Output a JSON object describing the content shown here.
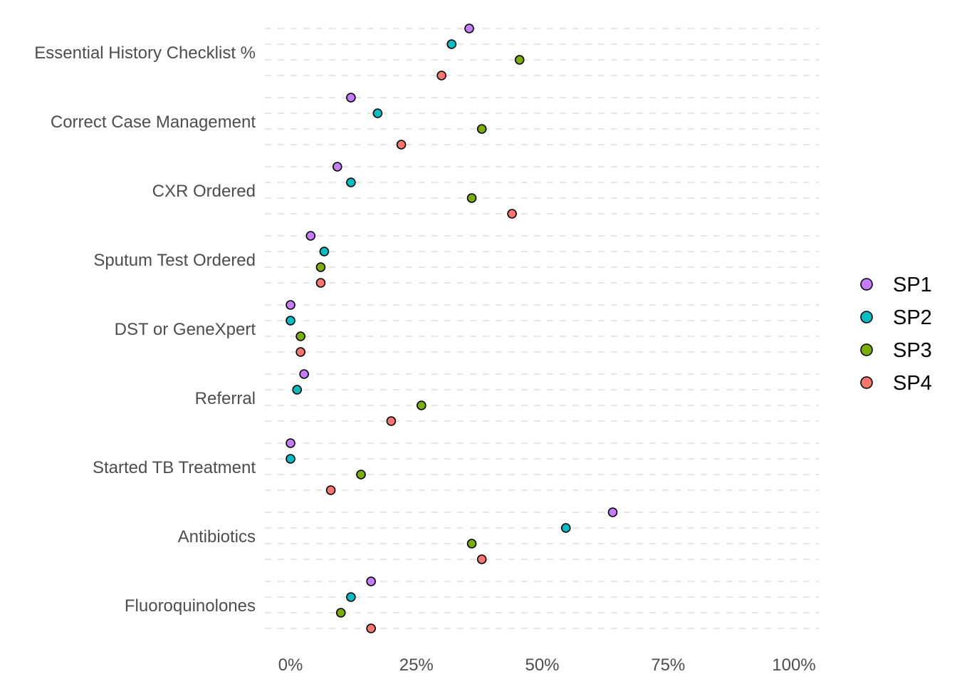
{
  "colors": {
    "SP1": "#c77cff",
    "SP2": "#00bfc4",
    "SP3": "#7cae00",
    "SP4": "#f8766d"
  },
  "chart_data": {
    "type": "scatter",
    "title": "",
    "xlabel": "",
    "ylabel": "",
    "xlim": [
      0,
      1
    ],
    "x_ticks": [
      0,
      0.25,
      0.5,
      0.75,
      1
    ],
    "x_tick_labels": [
      "0%",
      "25%",
      "50%",
      "75%",
      "100%"
    ],
    "grid": "horizontal dashed",
    "legend_position": "right",
    "categories": [
      "Essential History Checklist %",
      "Correct Case Management",
      "CXR Ordered",
      "Sputum Test Ordered",
      "DST or GeneXpert",
      "Referral",
      "Started TB Treatment",
      "Antibiotics",
      "Fluoroquinolones"
    ],
    "series": [
      {
        "name": "SP1",
        "values": [
          0.355,
          0.12,
          0.093,
          0.04,
          0.0,
          0.027,
          0.0,
          0.64,
          0.16
        ]
      },
      {
        "name": "SP2",
        "values": [
          0.32,
          0.173,
          0.12,
          0.067,
          0.0,
          0.013,
          0.0,
          0.547,
          0.12
        ]
      },
      {
        "name": "SP3",
        "values": [
          0.455,
          0.38,
          0.36,
          0.06,
          0.02,
          0.26,
          0.14,
          0.36,
          0.1
        ]
      },
      {
        "name": "SP4",
        "values": [
          0.3,
          0.22,
          0.44,
          0.06,
          0.02,
          0.2,
          0.08,
          0.38,
          0.16
        ]
      }
    ]
  }
}
